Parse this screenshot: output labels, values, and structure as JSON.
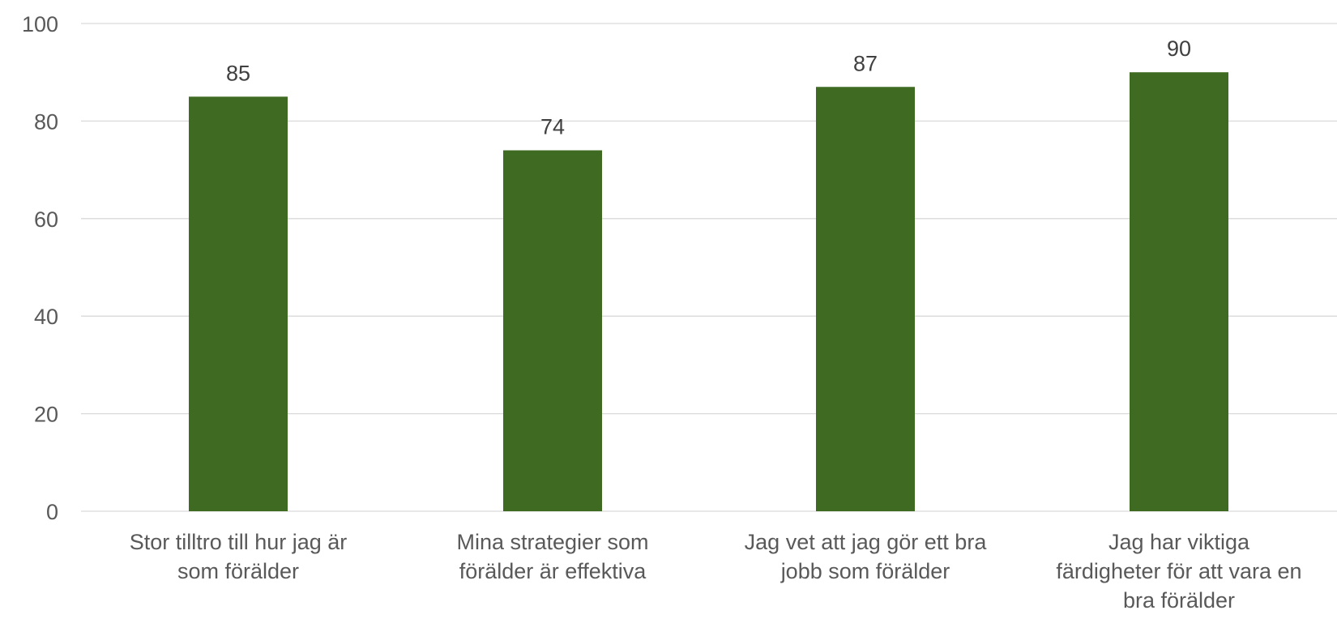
{
  "chart_data": {
    "type": "bar",
    "title": "",
    "xlabel": "",
    "ylabel": "",
    "ylim": [
      0,
      100
    ],
    "yticks": [
      0,
      20,
      40,
      60,
      80,
      100
    ],
    "grid": true,
    "legend": "none",
    "show_data_labels": true,
    "bar_color": "#3e6b21",
    "gridline_color": "#d9d9d9",
    "text_color": "#595959",
    "categories": [
      "Stor tilltro till hur jag är som förälder",
      "Mina strategier som förälder är effektiva",
      "Jag vet att jag gör ett bra jobb som förälder",
      "Jag har viktiga färdigheter för att vara en bra förälder"
    ],
    "category_lines": [
      [
        "Stor tilltro till hur jag är",
        "som förälder"
      ],
      [
        "Mina strategier som",
        "förälder är effektiva"
      ],
      [
        "Jag vet att jag gör ett bra",
        "jobb som förälder"
      ],
      [
        "Jag har viktiga",
        "färdigheter för att vara en",
        "bra förälder"
      ]
    ],
    "values": [
      85,
      74,
      87,
      90
    ]
  }
}
